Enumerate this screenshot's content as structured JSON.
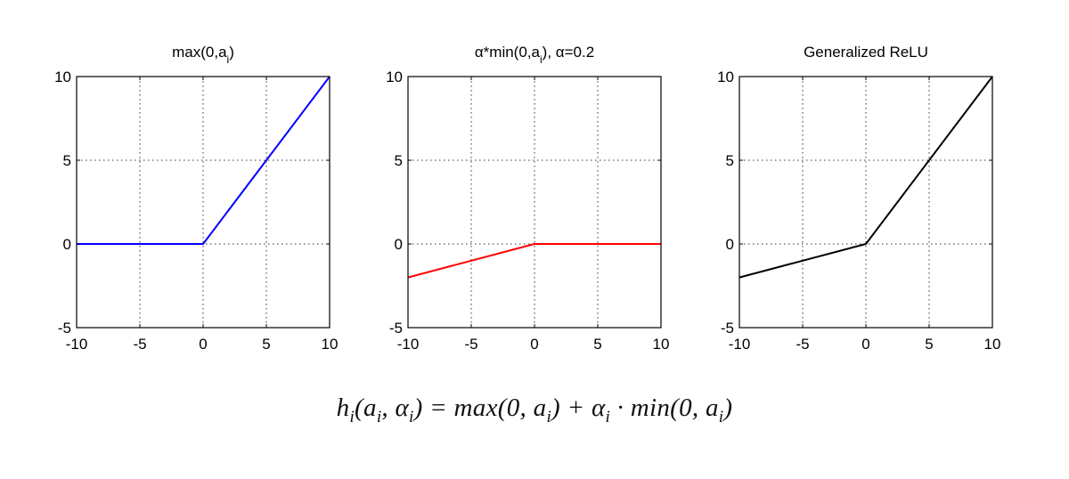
{
  "chart_data": [
    {
      "type": "line",
      "title": "max(0,a_i)",
      "title_parts": [
        "max(0,a",
        "i",
        ")"
      ],
      "xlim": [
        -10,
        10
      ],
      "ylim": [
        -5,
        10
      ],
      "xticks": [
        -10,
        -5,
        0,
        5,
        10
      ],
      "yticks": [
        -5,
        0,
        5,
        10
      ],
      "grid": true,
      "series": [
        {
          "color": "#0000ff",
          "x": [
            -10,
            0,
            10
          ],
          "y": [
            0,
            0,
            10
          ]
        }
      ]
    },
    {
      "type": "line",
      "title": "α*min(0,a_i), α=0.2",
      "title_parts": [
        "α*min(0,a",
        "i",
        "), α=0.2"
      ],
      "xlim": [
        -10,
        10
      ],
      "ylim": [
        -5,
        10
      ],
      "xticks": [
        -10,
        -5,
        0,
        5,
        10
      ],
      "yticks": [
        -5,
        0,
        5,
        10
      ],
      "grid": true,
      "series": [
        {
          "color": "#ff0000",
          "x": [
            -10,
            0,
            10
          ],
          "y": [
            -2,
            0,
            0
          ]
        }
      ]
    },
    {
      "type": "line",
      "title": "Generalized ReLU",
      "title_parts": [
        "Generalized ReLU",
        "",
        ""
      ],
      "xlim": [
        -10,
        10
      ],
      "ylim": [
        -5,
        10
      ],
      "xticks": [
        -10,
        -5,
        0,
        5,
        10
      ],
      "yticks": [
        -5,
        0,
        5,
        10
      ],
      "grid": true,
      "series": [
        {
          "color": "#000000",
          "x": [
            -10,
            0,
            10
          ],
          "y": [
            -2,
            0,
            10
          ]
        }
      ]
    }
  ],
  "formula": "hi(ai, αi) = max(0, ai) + αi · min(0, ai)"
}
